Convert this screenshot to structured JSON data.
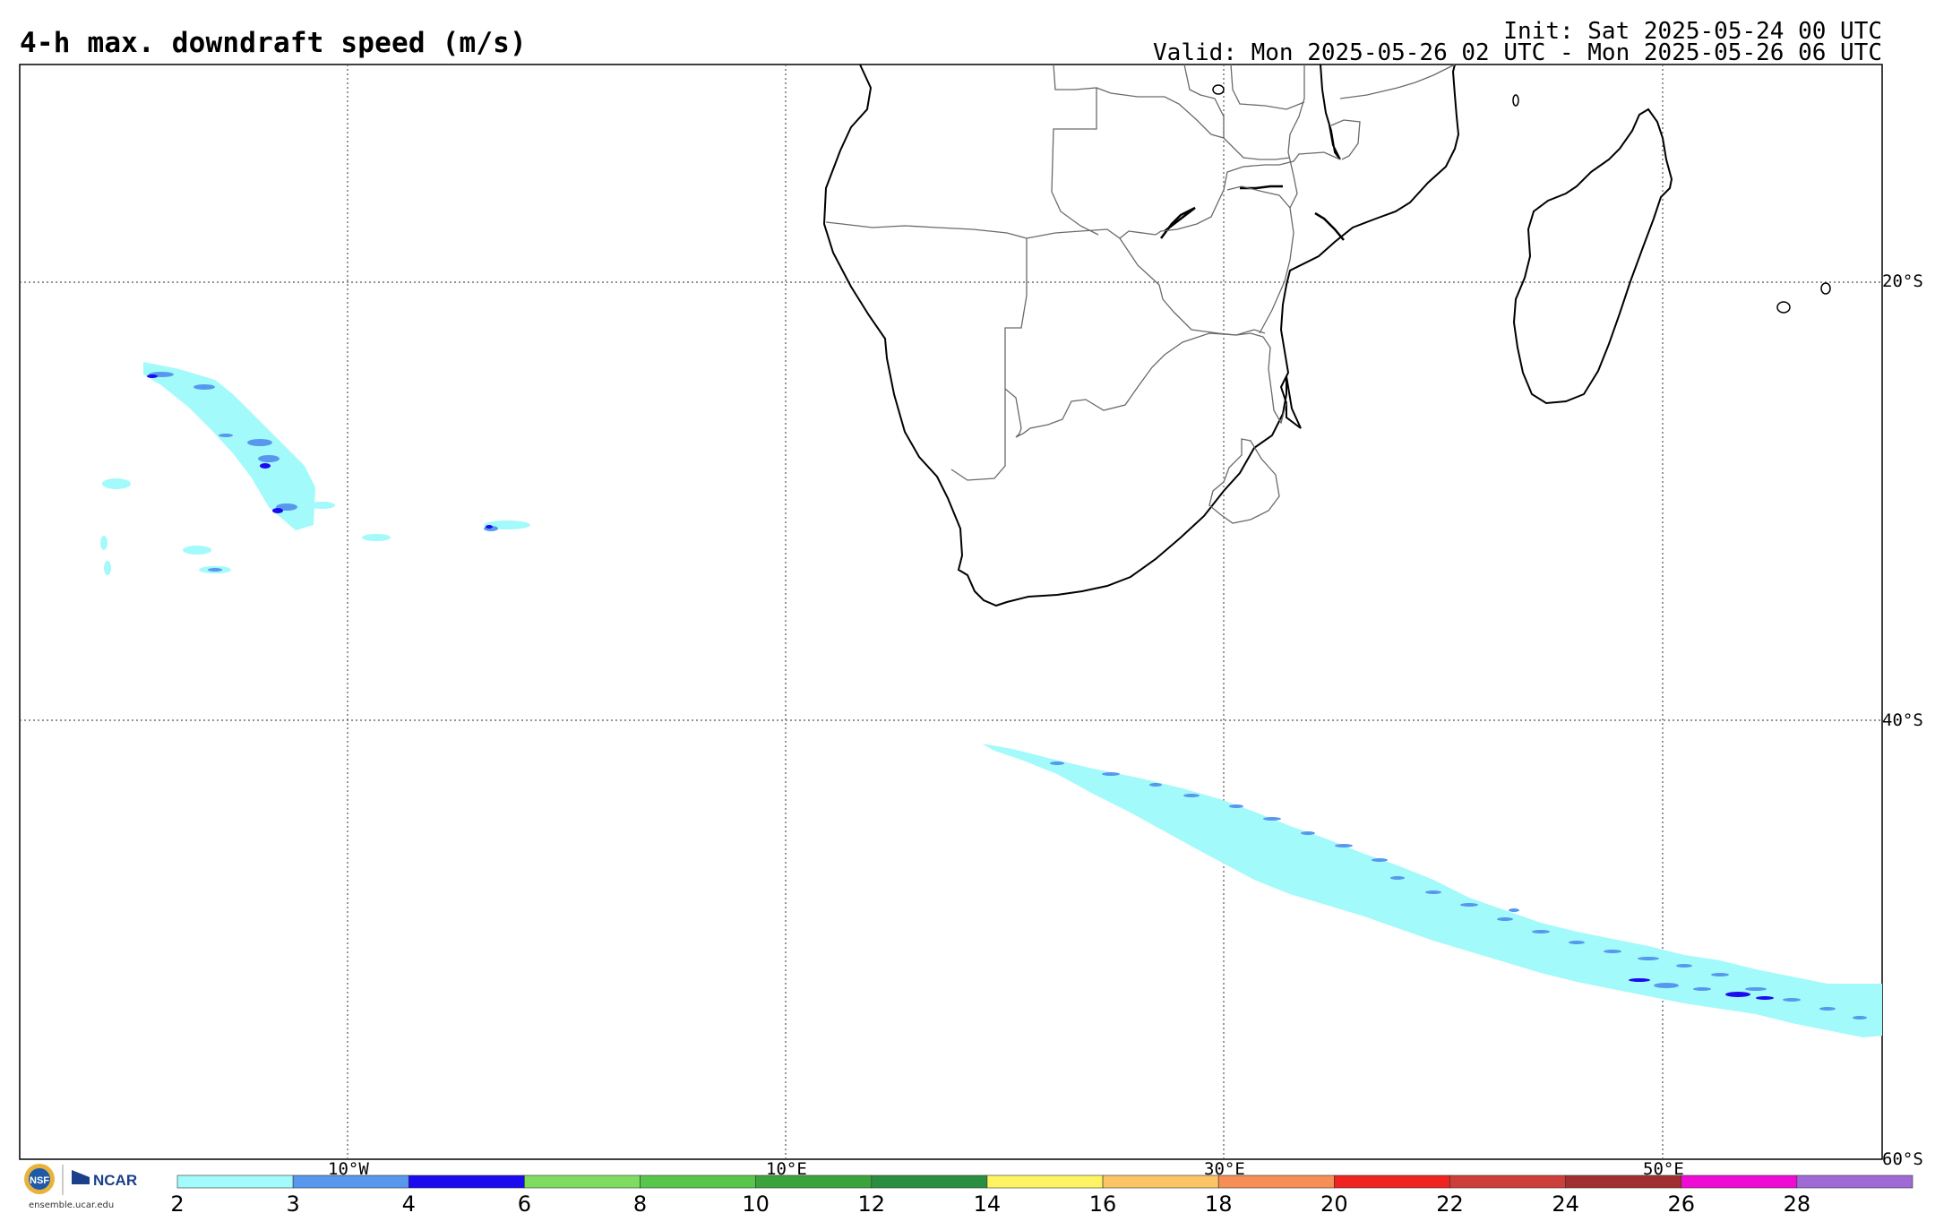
{
  "header": {
    "title": "4-h max. downdraft speed (m/s)",
    "init": "Init: Sat 2025-05-24 00 UTC",
    "valid": "Valid: Mon 2025-05-26 02 UTC - Mon 2025-05-26 06 UTC"
  },
  "map": {
    "lat_labels": [
      "20°S",
      "40°S",
      "60°S"
    ],
    "lon_labels": [
      "10°W",
      "10°E",
      "30°E",
      "50°E"
    ],
    "grid_style": "dotted"
  },
  "colorbar": {
    "ticks": [
      "2",
      "3",
      "4",
      "6",
      "8",
      "10",
      "12",
      "14",
      "16",
      "18",
      "20",
      "22",
      "24",
      "26",
      "28"
    ],
    "colors": [
      "#a2fafa",
      "#5797ee",
      "#1c0bee",
      "#7edc61",
      "#58c64b",
      "#3aa33b",
      "#298e3f",
      "#fcf463",
      "#fbc466",
      "#f58f55",
      "#ef2421",
      "#cd3f3a",
      "#a22f2f",
      "#ee0cd5",
      "#a06ad6"
    ]
  },
  "credits": {
    "ncar": "NCAR",
    "url": "ensemble.ucar.edu"
  }
}
